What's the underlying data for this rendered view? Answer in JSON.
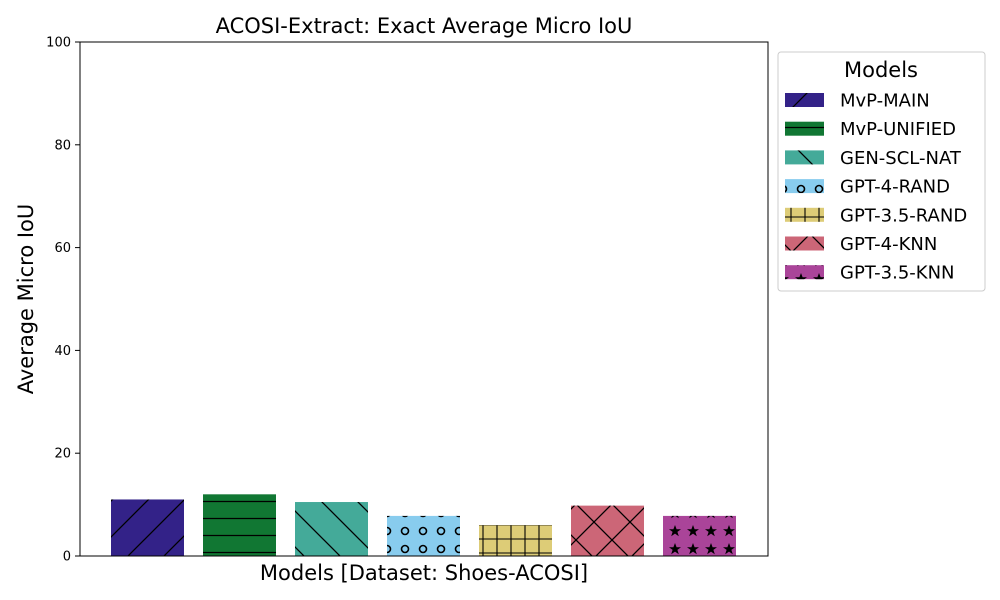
{
  "chart_data": {
    "type": "bar",
    "title": "ACOSI-Extract: Exact Average Micro IoU",
    "xlabel": "Models [Dataset: Shoes-ACOSI]",
    "ylabel": "Average Micro IoU",
    "ylim": [
      0,
      100
    ],
    "yticks": [
      0,
      20,
      40,
      60,
      80,
      100
    ],
    "grid": false,
    "legend": {
      "title": "Models",
      "placement": "outside-right-top"
    },
    "series": [
      {
        "name": "MvP-MAIN",
        "value": 11.0,
        "color": "#332288",
        "hatch": "diagonal"
      },
      {
        "name": "MvP-UNIFIED",
        "value": 12.0,
        "color": "#117733",
        "hatch": "horizontal"
      },
      {
        "name": "GEN-SCL-NAT",
        "value": 10.5,
        "color": "#44AA99",
        "hatch": "backslash"
      },
      {
        "name": "GPT-4-RAND",
        "value": 7.8,
        "color": "#88CCEE",
        "hatch": "circles"
      },
      {
        "name": "GPT-3.5-RAND",
        "value": 6.0,
        "color": "#DDCC77",
        "hatch": "grid"
      },
      {
        "name": "GPT-4-KNN",
        "value": 9.8,
        "color": "#CC6677",
        "hatch": "cross"
      },
      {
        "name": "GPT-3.5-KNN",
        "value": 7.8,
        "color": "#AA4499",
        "hatch": "stars"
      }
    ]
  }
}
